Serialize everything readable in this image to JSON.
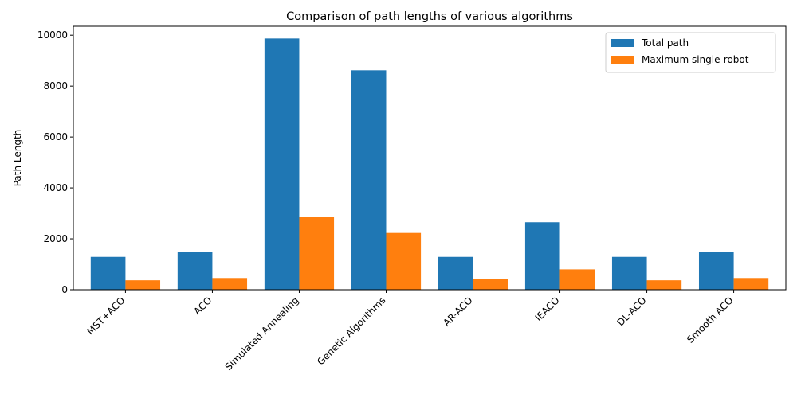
{
  "chart_data": {
    "type": "bar",
    "title": "Comparison of path lengths of various algorithms",
    "xlabel": "",
    "ylabel": "Path Length",
    "categories": [
      "MST+ACO",
      "ACO",
      "Simulated Annealing",
      "Genetic Algorithms",
      "AR-ACO",
      "IEACO",
      "DL-ACO",
      "Smooth ACO"
    ],
    "series": [
      {
        "name": "Total path",
        "color": "#1f77b4",
        "values": [
          1290,
          1470,
          9870,
          8620,
          1290,
          2650,
          1290,
          1470
        ]
      },
      {
        "name": "Maximum single-robot",
        "color": "#ff7f0e",
        "values": [
          370,
          460,
          2850,
          2230,
          430,
          800,
          370,
          460
        ]
      }
    ],
    "ylim": [
      0,
      10350
    ],
    "yticks": [
      0,
      2000,
      4000,
      6000,
      8000,
      10000
    ],
    "grid": false,
    "legend_position": "top-right"
  }
}
